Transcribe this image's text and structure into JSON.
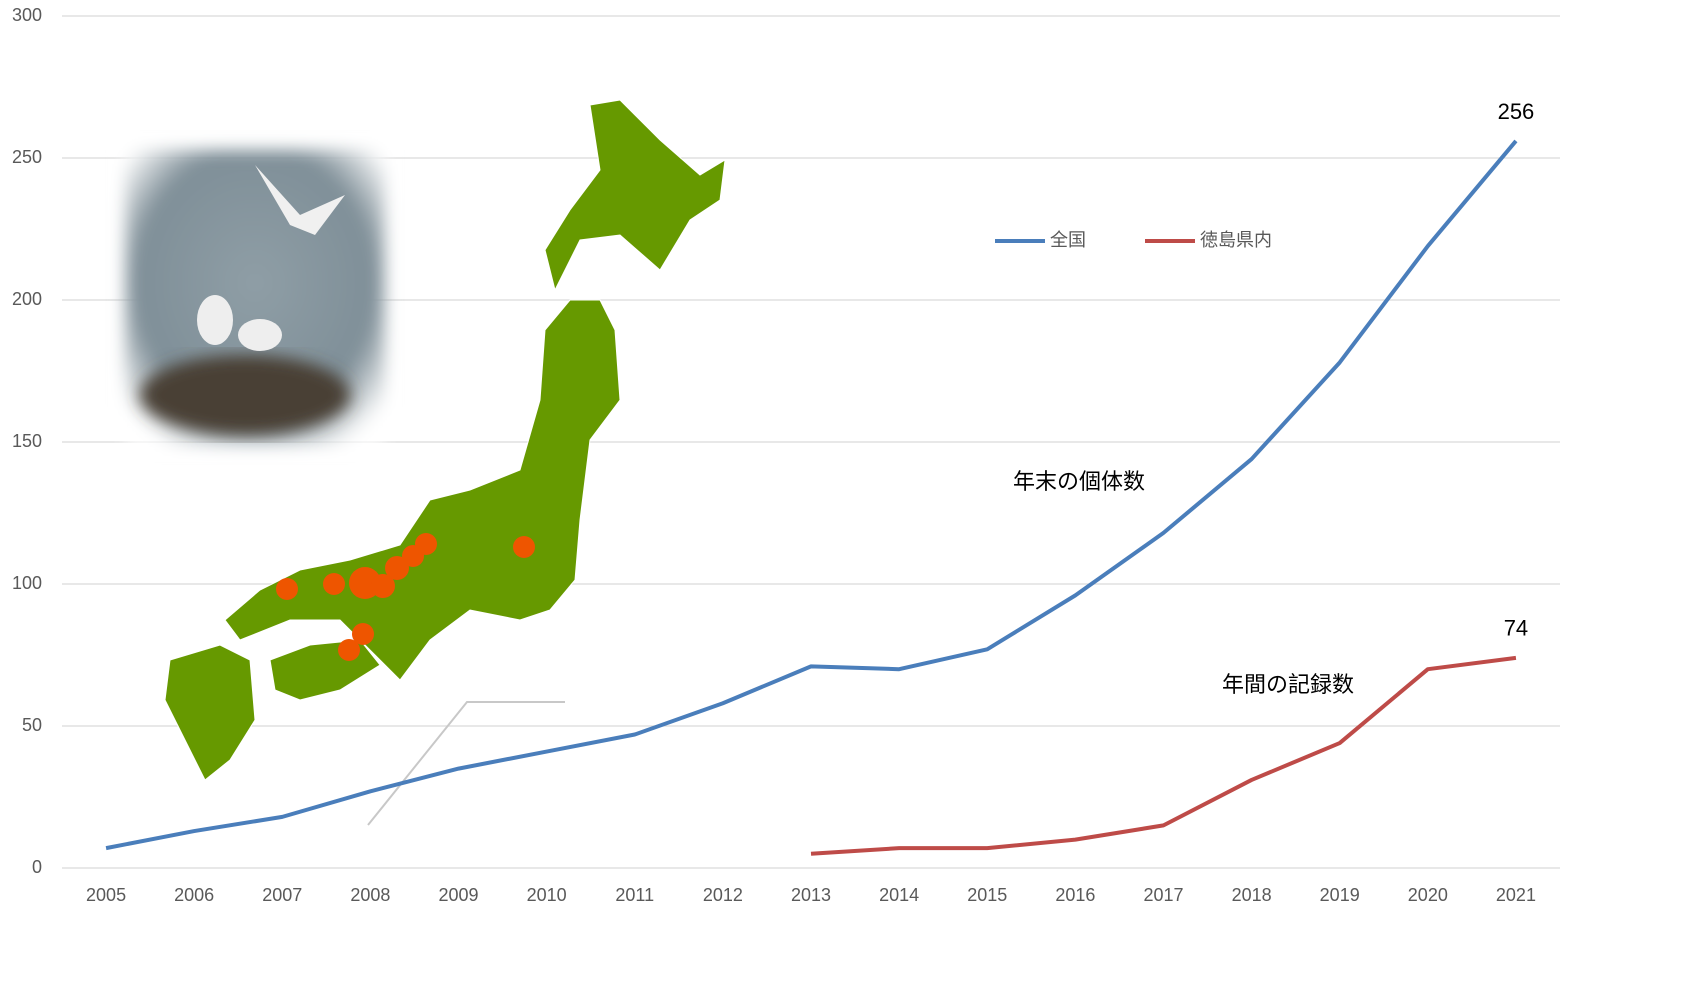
{
  "chart_data": {
    "type": "line",
    "categories": [
      "2005",
      "2006",
      "2007",
      "2008",
      "2009",
      "2010",
      "2011",
      "2012",
      "2013",
      "2014",
      "2015",
      "2016",
      "2017",
      "2018",
      "2019",
      "2020",
      "2021"
    ],
    "series": [
      {
        "name": "全国",
        "color": "#4a7ebb",
        "values": [
          7,
          13,
          18,
          27,
          35,
          41,
          47,
          58,
          71,
          70,
          77,
          96,
          118,
          144,
          178,
          219,
          256
        ]
      },
      {
        "name": "徳島県内",
        "color": "#be4b48",
        "values": [
          null,
          null,
          null,
          null,
          null,
          null,
          null,
          null,
          5,
          7,
          7,
          10,
          15,
          31,
          44,
          70,
          74
        ]
      }
    ],
    "annotations": [
      "年末の個体数",
      "年間の記録数"
    ],
    "ylim": [
      0,
      300
    ],
    "yticks": [
      0,
      50,
      100,
      150,
      200,
      250,
      300
    ],
    "grid": true
  }
}
